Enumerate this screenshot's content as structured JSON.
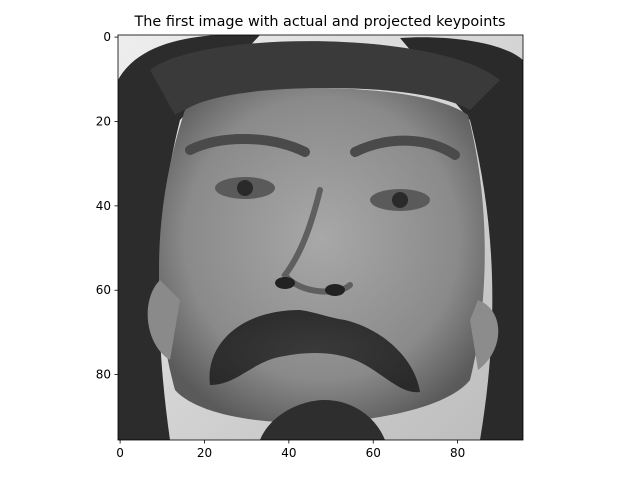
{
  "chart_data": {
    "type": "image",
    "title": "The first image with actual and projected keypoints",
    "image_description_semantic": "grayscale face photo (96x96 pixels)",
    "colormap": "gray",
    "xlim": [
      -0.5,
      95.5
    ],
    "ylim": [
      95.5,
      -0.5
    ],
    "x_ticks": [
      0,
      20,
      40,
      60,
      80
    ],
    "y_ticks": [
      0,
      20,
      40,
      60,
      80
    ],
    "x_tick_labels": [
      "0",
      "20",
      "40",
      "60",
      "80"
    ],
    "y_tick_labels": [
      "0",
      "20",
      "40",
      "60",
      "80"
    ],
    "grid": false,
    "legend": "none"
  }
}
